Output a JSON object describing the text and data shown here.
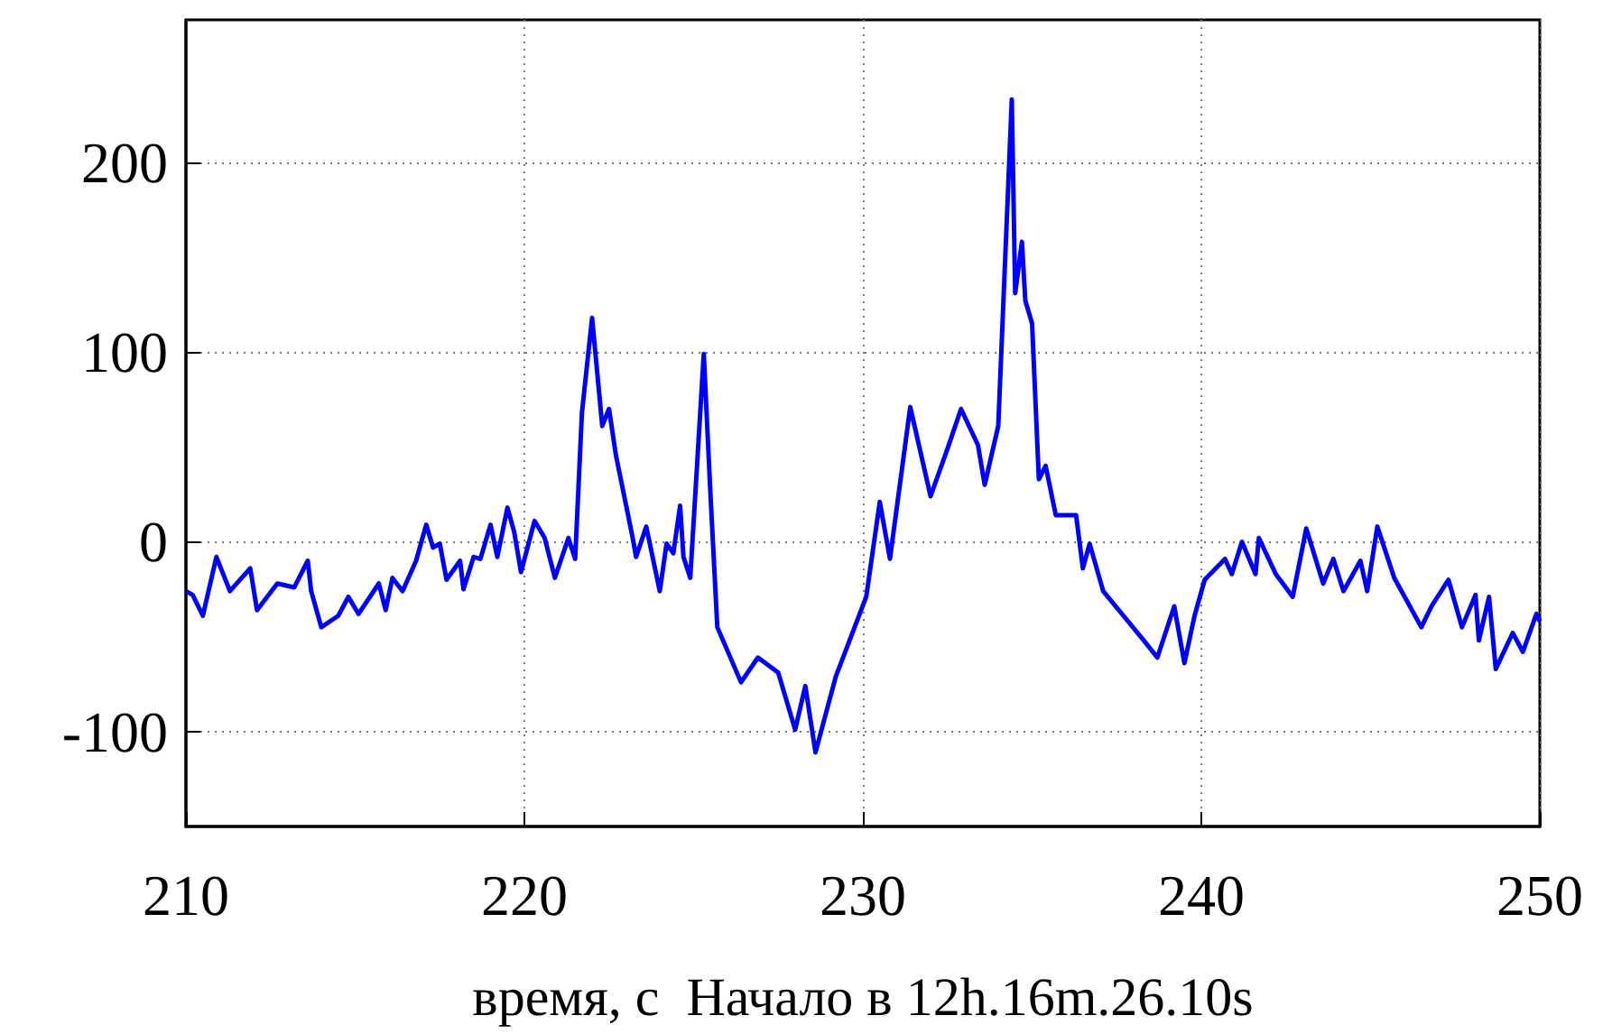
{
  "chart_data": {
    "type": "line",
    "xlabel": "время, с  Начало в 12h.16m.26.10s",
    "xlim": [
      210,
      250
    ],
    "xticks": [
      210,
      220,
      230,
      240,
      250
    ],
    "ylim": [
      -150,
      275
    ],
    "yticks": [
      -100,
      0,
      100,
      200
    ],
    "grid": true,
    "x": [
      210.0,
      210.2,
      210.5,
      210.9,
      211.3,
      211.9,
      212.1,
      212.7,
      213.2,
      213.6,
      213.7,
      214.0,
      214.5,
      214.8,
      215.1,
      215.7,
      215.9,
      216.1,
      216.4,
      216.8,
      217.1,
      217.3,
      217.5,
      217.7,
      218.1,
      218.2,
      218.5,
      218.7,
      219.0,
      219.2,
      219.5,
      219.7,
      219.9,
      220.3,
      220.6,
      220.9,
      221.3,
      221.5,
      221.7,
      222.0,
      222.3,
      222.5,
      222.7,
      223.2,
      223.3,
      223.6,
      224.0,
      224.2,
      224.4,
      224.6,
      224.7,
      224.9,
      225.3,
      225.5,
      225.7,
      226.4,
      226.9,
      227.5,
      228.0,
      228.3,
      228.6,
      229.2,
      230.1,
      230.5,
      230.8,
      231.4,
      232.0,
      232.5,
      232.9,
      233.4,
      233.6,
      234.0,
      234.4,
      234.5,
      234.7,
      234.8,
      235.0,
      235.2,
      235.4,
      235.7,
      236.3,
      236.5,
      236.7,
      237.1,
      237.7,
      238.3,
      238.7,
      239.2,
      239.5,
      239.8,
      240.1,
      240.7,
      240.9,
      241.2,
      241.6,
      241.7,
      242.2,
      242.7,
      243.1,
      243.6,
      243.9,
      244.2,
      244.7,
      244.9,
      245.2,
      245.7,
      246.5,
      246.8,
      247.3,
      247.7,
      248.1,
      248.2,
      248.5,
      248.7,
      249.2,
      249.5,
      249.9,
      250.0
    ],
    "series": [
      {
        "color": "#0000ff",
        "values": [
          -26,
          -28,
          -39,
          -8,
          -26,
          -14,
          -36,
          -22,
          -24,
          -10,
          -26,
          -45,
          -39,
          -29,
          -38,
          -22,
          -36,
          -19,
          -26,
          -10,
          9,
          -3,
          -1,
          -20,
          -10,
          -25,
          -8,
          -9,
          9,
          -8,
          18,
          5,
          -16,
          11,
          2,
          -19,
          2,
          -9,
          68,
          118,
          61,
          70,
          46,
          2,
          -8,
          8,
          -26,
          -1,
          -6,
          19,
          -8,
          -19,
          99,
          24,
          -45,
          -74,
          -61,
          -69,
          -99,
          -76,
          -111,
          -71,
          -29,
          21,
          -9,
          71,
          24,
          49,
          70,
          51,
          30,
          61,
          233,
          131,
          158,
          127,
          115,
          33,
          40,
          14,
          14,
          -14,
          -1,
          -26,
          -39,
          -52,
          -61,
          -34,
          -64,
          -39,
          -20,
          -9,
          -17,
          0,
          -17,
          2,
          -17,
          -29,
          7,
          -22,
          -9,
          -26,
          -10,
          -26,
          8,
          -19,
          -45,
          -34,
          -20,
          -45,
          -28,
          -52,
          -29,
          -67,
          -48,
          -58,
          -38,
          -42
        ]
      }
    ]
  }
}
